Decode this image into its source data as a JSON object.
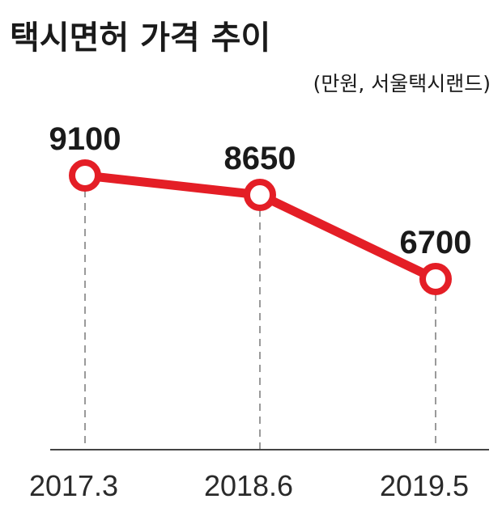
{
  "chart_data": {
    "type": "line",
    "title": "택시면허 가격 추이",
    "subtitle": "(만원, 서울택시랜드)",
    "categories": [
      "2017.3",
      "2018.6",
      "2019.5"
    ],
    "series": [
      {
        "values": [
          9100,
          8650,
          6700
        ]
      }
    ],
    "value_labels": [
      "9100",
      "8650",
      "6700"
    ],
    "ylim": [
      0,
      10000
    ],
    "grid": false,
    "line_color": "#e41e26",
    "guide_line_style": "dashed"
  }
}
